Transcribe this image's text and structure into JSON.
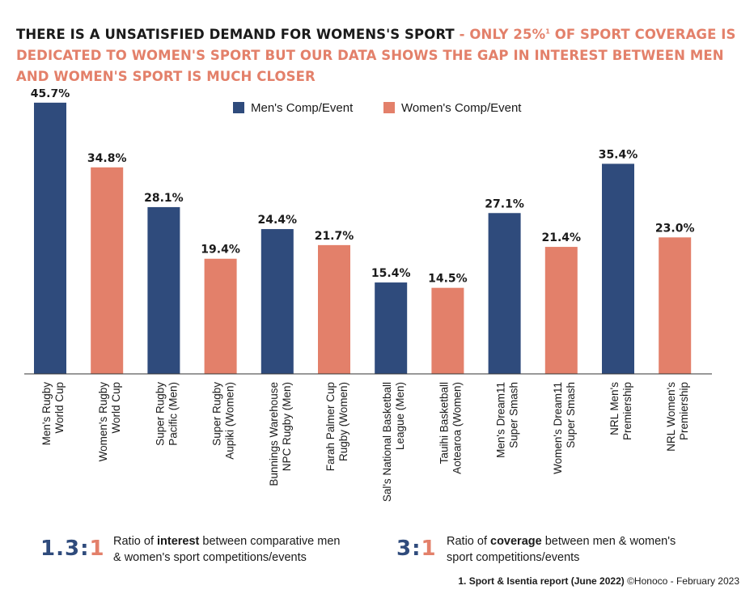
{
  "title": {
    "part1": "THERE IS A UNSATISFIED DEMAND FOR WOMENS'S SPORT",
    "part2": " - ONLY 25%",
    "sup": "1",
    "part3": " OF SPORT COVERAGE IS DEDICATED TO WOMEN'S SPORT BUT OUR DATA SHOWS THE GAP IN INTEREST BETWEEN MEN AND WOMEN'S SPORT IS MUCH CLOSER"
  },
  "colors": {
    "men": "#2f4b7c",
    "women": "#e3806a",
    "text": "#1a1a1a"
  },
  "chart_data": {
    "type": "bar",
    "grid": false,
    "legend_position": "top-center",
    "ylim": [
      0,
      48
    ],
    "legend": [
      {
        "label": "Men's Comp/Event",
        "group": "men"
      },
      {
        "label": "Women's Comp/Event",
        "group": "women"
      }
    ],
    "bars": [
      {
        "lines": [
          "Men's Rugby",
          "World Cup"
        ],
        "value": 45.7,
        "label": "45.7%",
        "group": "men"
      },
      {
        "lines": [
          "Women's Rugby",
          "World Cup"
        ],
        "value": 34.8,
        "label": "34.8%",
        "group": "women"
      },
      {
        "lines": [
          "Super Rugby",
          "Pacific (Men)"
        ],
        "value": 28.1,
        "label": "28.1%",
        "group": "men"
      },
      {
        "lines": [
          "Super Rugby",
          "Aupiki (Women)"
        ],
        "value": 19.4,
        "label": "19.4%",
        "group": "women"
      },
      {
        "lines": [
          "Bunnings Warehouse",
          "NPC Rugby (Men)"
        ],
        "value": 24.4,
        "label": "24.4%",
        "group": "men"
      },
      {
        "lines": [
          "Farah Palmer Cup",
          "Rugby (Women)"
        ],
        "value": 21.7,
        "label": "21.7%",
        "group": "women"
      },
      {
        "lines": [
          "Sal's National Basketball",
          "League (Men)"
        ],
        "value": 15.4,
        "label": "15.4%",
        "group": "men"
      },
      {
        "lines": [
          "Tauihi Basketball",
          "Aotearoa (Women)"
        ],
        "value": 14.5,
        "label": "14.5%",
        "group": "women"
      },
      {
        "lines": [
          "Men's Dream11",
          "Super Smash"
        ],
        "value": 27.1,
        "label": "27.1%",
        "group": "men"
      },
      {
        "lines": [
          "Women's Dream11",
          "Super Smash"
        ],
        "value": 21.4,
        "label": "21.4%",
        "group": "women"
      },
      {
        "lines": [
          "NRL Men's",
          "Premiership"
        ],
        "value": 35.4,
        "label": "35.4%",
        "group": "men"
      },
      {
        "lines": [
          "NRL Women's",
          "Premiership"
        ],
        "value": 23.0,
        "label": "23.0%",
        "group": "women"
      }
    ]
  },
  "ratios": {
    "interest": {
      "left": "1.3",
      "sep": ":",
      "right": "1",
      "text_before": "Ratio of ",
      "bold": "interest",
      "text_after": " between comparative men",
      "line2": "& women's sport competitions/events"
    },
    "coverage": {
      "left": "3",
      "sep": ":",
      "right": "1",
      "text_before": "Ratio of ",
      "bold": "coverage",
      "text_after": " between men & women's",
      "line2": "sport competitions/events"
    }
  },
  "footnote": {
    "bold": "1. Sport & Isentia report (June 2022)",
    "rest": " ©Honoco - February 2023"
  }
}
